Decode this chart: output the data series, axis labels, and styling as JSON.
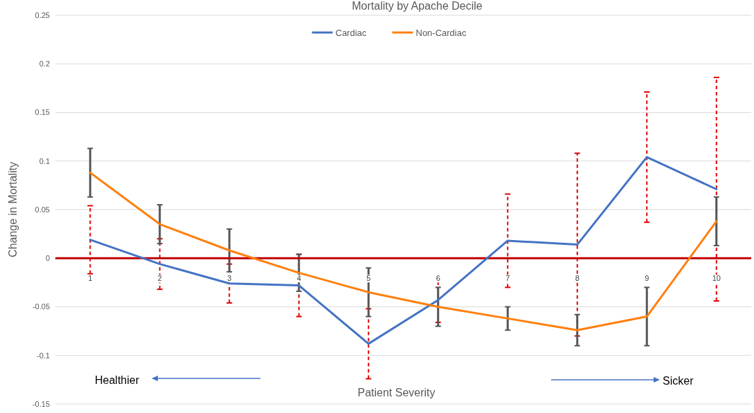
{
  "chart_data": {
    "type": "line",
    "title": "Mortality by Apache Decile",
    "xlabel": "Patient Severity",
    "ylabel": "Change in Mortality",
    "categories": [
      "1",
      "2",
      "3",
      "4",
      "5",
      "6",
      "7",
      "8",
      "9",
      "10"
    ],
    "series": [
      {
        "name": "Cardiac",
        "color": "#4472c4",
        "values": [
          0.019,
          -0.006,
          -0.026,
          -0.028,
          -0.088,
          -0.043,
          0.018,
          0.014,
          0.104,
          0.071
        ],
        "errors": [
          0.035,
          0.026,
          0.02,
          0.032,
          0.036,
          0.023,
          0.048,
          0.094,
          0.067,
          0.115
        ]
      },
      {
        "name": "Non-Cardiac",
        "color": "#ff7f0e",
        "values": [
          0.088,
          0.035,
          0.008,
          -0.015,
          -0.035,
          -0.05,
          -0.062,
          -0.074,
          -0.06,
          0.038
        ],
        "errors": [
          0.025,
          0.02,
          0.022,
          0.019,
          0.025,
          0.02,
          0.012,
          0.016,
          0.03,
          0.025
        ]
      }
    ],
    "ylim": [
      -0.15,
      0.25
    ],
    "yticks": [
      -0.15,
      -0.1,
      -0.05,
      0,
      0.05,
      0.1,
      0.15,
      0.2,
      0.25
    ],
    "grid": "y",
    "legend": "top",
    "marker": "none",
    "line_style": "solid",
    "annotations": [
      "Healthier",
      "Sicker"
    ]
  }
}
